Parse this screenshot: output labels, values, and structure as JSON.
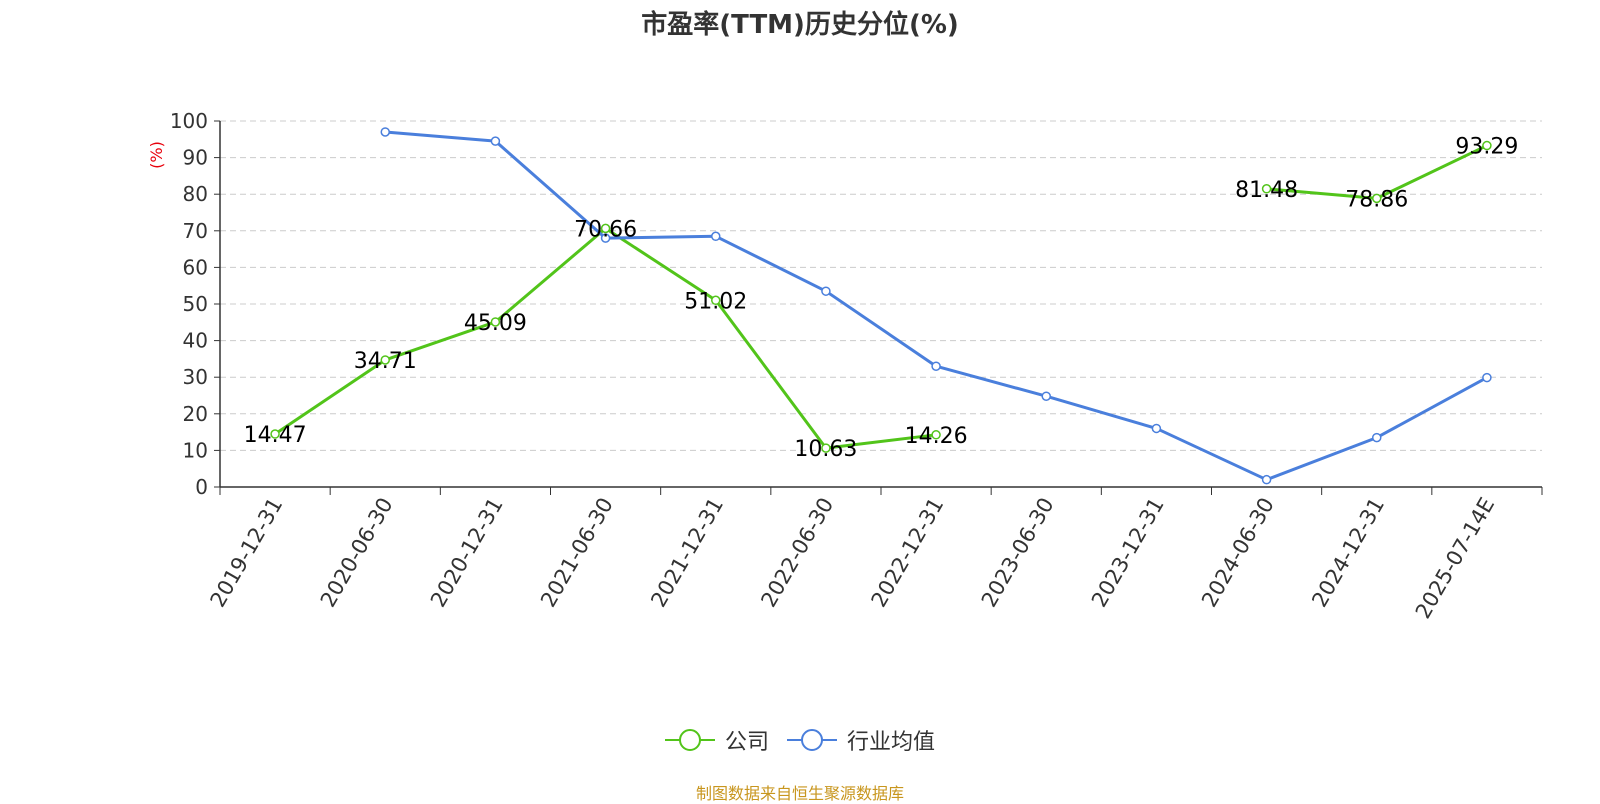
{
  "header": {
    "title": "市盈率(TTM)历史分位(%)"
  },
  "footer": {
    "source": "制图数据来自恒生聚源数据库"
  },
  "colors": {
    "company": "#52c41a",
    "industry": "#4a7fdc",
    "ylabel": "#e8000b",
    "source": "#c8961e"
  },
  "chart_data": {
    "type": "line",
    "title": "市盈率(TTM)历史分位(%)",
    "xlabel": "",
    "ylabel": "(%)",
    "ylim": [
      0,
      100
    ],
    "yticks": [
      "0",
      "10",
      "20",
      "30",
      "40",
      "50",
      "60",
      "70",
      "80",
      "90",
      "100"
    ],
    "grid": true,
    "legend_position": "bottom-center",
    "categories": [
      "2019-12-31",
      "2020-06-30",
      "2020-12-31",
      "2021-06-30",
      "2021-12-31",
      "2022-06-30",
      "2022-12-31",
      "2023-06-30",
      "2023-12-31",
      "2024-06-30",
      "2024-12-31",
      "2025-07-14E"
    ],
    "series": [
      {
        "name": "公司",
        "values": [
          14.47,
          34.71,
          45.09,
          70.66,
          51.02,
          10.63,
          14.26,
          null,
          null,
          81.48,
          78.86,
          93.29
        ],
        "labels": [
          "14.47",
          "34.71",
          "45.09",
          "70.66",
          "51.02",
          "10.63",
          "14.26",
          null,
          null,
          "81.48",
          "78.86",
          "93.29"
        ]
      },
      {
        "name": "行业均值",
        "values": [
          null,
          97.0,
          94.5,
          68.0,
          68.5,
          53.5,
          33.0,
          24.8,
          16.0,
          2.0,
          13.5,
          29.9
        ]
      }
    ]
  }
}
